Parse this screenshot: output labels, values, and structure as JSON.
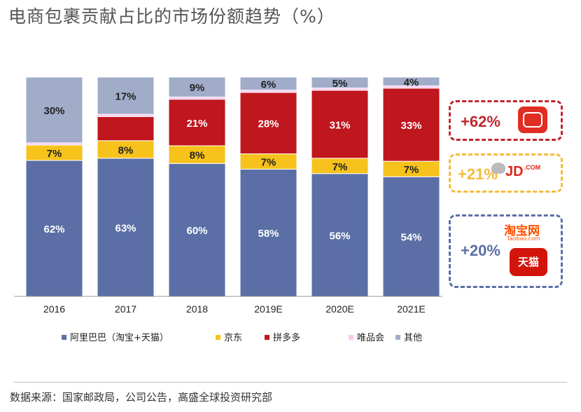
{
  "title": "电商包裹贡献占比的市场份额趋势（%）",
  "source": "数据来源：国家邮政局，公司公告，高盛全球投资研究部",
  "colors": {
    "alibaba": "#5b6fa6",
    "jd": "#f6c21b",
    "pdd": "#c0161e",
    "vip": "#f7c8ee",
    "others": "#a1acc9"
  },
  "chart_data": {
    "type": "bar",
    "stacked": true,
    "normalized_percent": true,
    "categories": [
      "2016",
      "2017",
      "2018",
      "2019E",
      "2020E",
      "2021E"
    ],
    "series": [
      {
        "name": "阿里巴巴（淘宝+天猫）",
        "values": [
          62,
          63,
          60,
          58,
          56,
          54
        ],
        "labels": [
          "62%",
          "63%",
          "60%",
          "58%",
          "56%",
          "54%"
        ]
      },
      {
        "name": "京东",
        "values": [
          7,
          8,
          8,
          7,
          7,
          7
        ],
        "labels": [
          "7%",
          "8%",
          "8%",
          "7%",
          "7%",
          "7%"
        ]
      },
      {
        "name": "拼多多",
        "values": [
          0,
          11,
          21,
          28,
          31,
          33
        ],
        "labels": [
          "",
          "",
          "21%",
          "28%",
          "31%",
          "33%"
        ]
      },
      {
        "name": "唯品会",
        "values": [
          1,
          1,
          1,
          1,
          1,
          1
        ],
        "labels": [
          "",
          "",
          "",
          "",
          "",
          ""
        ]
      },
      {
        "name": "其他",
        "values": [
          30,
          17,
          9,
          6,
          5,
          4
        ],
        "labels": [
          "30%",
          "17%",
          "9%",
          "6%",
          "5%",
          "4%"
        ]
      }
    ],
    "ylim": [
      0,
      100
    ],
    "legend_position": "bottom"
  },
  "callouts": {
    "pdd": {
      "label": "+62%",
      "logo": "pinduoduo-logo"
    },
    "jd": {
      "label": "+21%",
      "logo": "jd-logo",
      "logo_text": "JD",
      "logo_sub": ".COM"
    },
    "alibaba": {
      "label": "+20%",
      "logo": "taobao-tmall-logo",
      "taobao_text": "淘宝网",
      "taobao_sub": "Taobao.com",
      "tmall_text": "天猫"
    }
  }
}
